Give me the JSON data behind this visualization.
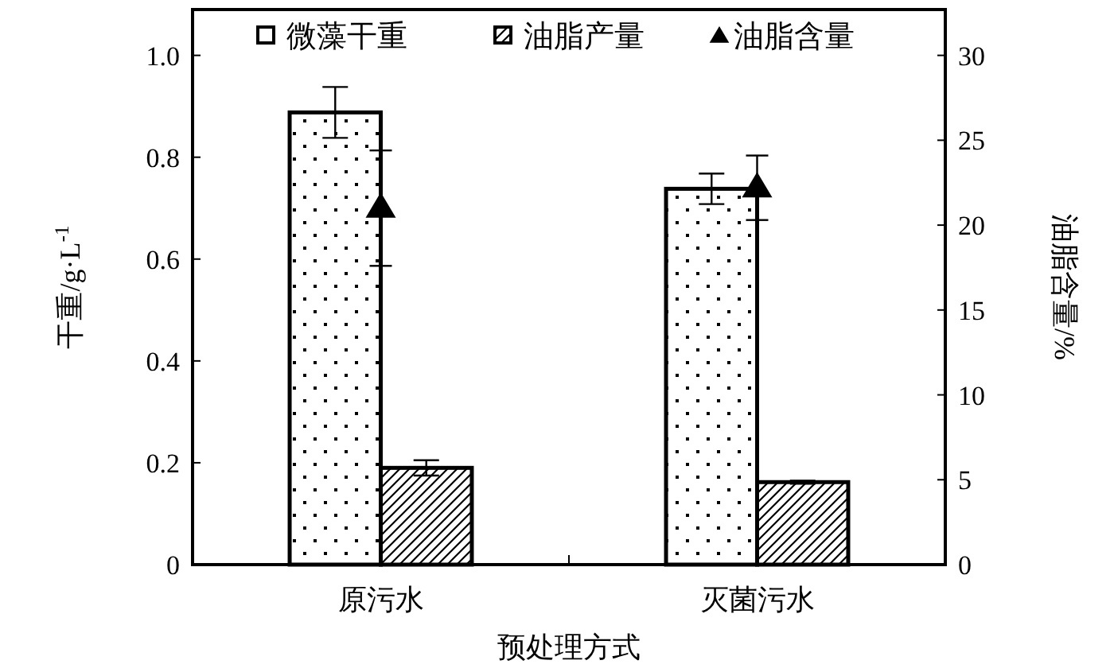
{
  "chart_data": {
    "type": "bar",
    "categories": [
      "原污水",
      "灭菌污水"
    ],
    "xlabel": "预处理方式",
    "ylabel": "干重/g·L$^{-1}$",
    "y2label": "油脂含量/%",
    "ylim": [
      0,
      1.09
    ],
    "yticks": [
      0,
      0.2,
      0.4,
      0.6,
      0.8,
      {
        "value": 1,
        "label": "1.0"
      }
    ],
    "y2lim": [
      0,
      32.7
    ],
    "y2ticks": [
      0,
      5,
      10,
      15,
      20,
      25,
      30
    ],
    "legend": "top",
    "series": [
      {
        "name": "微藻干重",
        "color": "#000000",
        "values": [
          0.888,
          0.738
        ],
        "errors": [
          0.05,
          0.03
        ]
      },
      {
        "name": "油脂产量",
        "color": "#000000",
        "values": [
          0.19,
          0.162
        ],
        "errors": [
          0.015,
          0.003
        ]
      },
      {
        "name": "油脂含量",
        "type": "scatter",
        "axis": "y2",
        "marker": "triangle",
        "color": "#000000",
        "x": [
          "原污水",
          "灭菌污水"
        ],
        "values": [
          21.0,
          22.2
        ],
        "errors": [
          3.4,
          1.9
        ]
      }
    ]
  }
}
